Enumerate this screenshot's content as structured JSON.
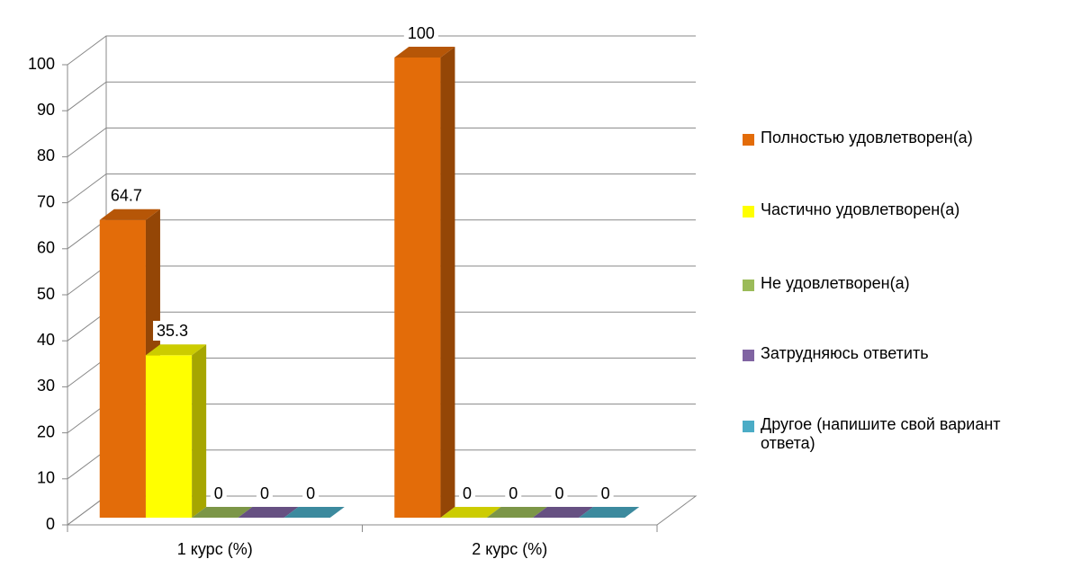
{
  "chart_data": {
    "type": "bar",
    "categories": [
      "1 курс (%)",
      "2 курс (%)"
    ],
    "series": [
      {
        "name": "Полностью удовлетворен(а)",
        "color": "#e36c09",
        "values": [
          64.7,
          100
        ]
      },
      {
        "name": "Частично удовлетворен(а)",
        "color": "#ffff00",
        "values": [
          35.3,
          0
        ]
      },
      {
        "name": "Не удовлетворен(а)",
        "color": "#9bbb59",
        "values": [
          0,
          0
        ]
      },
      {
        "name": "Затрудняюсь ответить",
        "color": "#8064a2",
        "values": [
          0,
          0
        ]
      },
      {
        "name": "Другое (напишите свой вариант ответа)",
        "color": "#4bacc6",
        "values": [
          0,
          0
        ]
      }
    ],
    "ylim": [
      0,
      100
    ],
    "yticks": [
      0,
      10,
      20,
      30,
      40,
      50,
      60,
      70,
      80,
      90,
      100
    ],
    "grid": true,
    "legend": "right"
  }
}
